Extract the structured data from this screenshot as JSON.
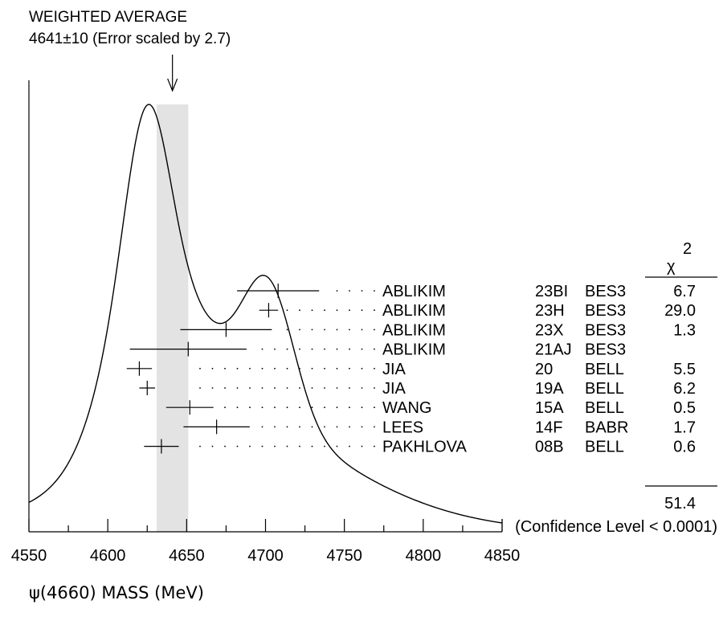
{
  "chart_data": {
    "type": "ideogram",
    "title_line1": "WEIGHTED AVERAGE",
    "title_line2": "4641±10 (Error scaled by 2.7)",
    "weighted_average": 4641,
    "average_error": 10,
    "error_scale": 2.7,
    "xlabel": "ψ(4660) MASS (MeV)",
    "xlim": [
      4550,
      4850
    ],
    "x_ticks": [
      "4550",
      "4600",
      "4650",
      "4700",
      "4750",
      "4800",
      "4850"
    ],
    "chi2_header": "χ",
    "chi2_header_sup": "2",
    "measurements": [
      {
        "author": "ABLIKIM",
        "ref": "23BI",
        "experiment": "BES3",
        "value": 4708,
        "err_low": 26,
        "err_high": 26,
        "chi2": "6.7"
      },
      {
        "author": "ABLIKIM",
        "ref": "23H",
        "experiment": "BES3",
        "value": 4702,
        "err_low": 6,
        "err_high": 6,
        "chi2": "29.0"
      },
      {
        "author": "ABLIKIM",
        "ref": "23X",
        "experiment": "BES3",
        "value": 4675,
        "err_low": 29,
        "err_high": 29,
        "chi2": "1.3"
      },
      {
        "author": "ABLIKIM",
        "ref": "21AJ",
        "experiment": "BES3",
        "value": 4651,
        "err_low": 37,
        "err_high": 37,
        "chi2": ""
      },
      {
        "author": "JIA",
        "ref": "20",
        "experiment": "BELL",
        "value": 4620,
        "err_low": 8,
        "err_high": 8,
        "chi2": "5.5"
      },
      {
        "author": "JIA",
        "ref": "19A",
        "experiment": "BELL",
        "value": 4625,
        "err_low": 5,
        "err_high": 5,
        "chi2": "6.2"
      },
      {
        "author": "WANG",
        "ref": "15A",
        "experiment": "BELL",
        "value": 4652,
        "err_low": 15,
        "err_high": 15,
        "chi2": "0.5"
      },
      {
        "author": "LEES",
        "ref": "14F",
        "experiment": "BABR",
        "value": 4669,
        "err_low": 21,
        "err_high": 21,
        "chi2": "1.7"
      },
      {
        "author": "PAKHLOVA",
        "ref": "08B",
        "experiment": "BELL",
        "value": 4634,
        "err_low": 11,
        "err_high": 11,
        "chi2": "0.6"
      }
    ],
    "chi2_total": "51.4",
    "confidence_level": "(Confidence Level < 0.0001)"
  }
}
